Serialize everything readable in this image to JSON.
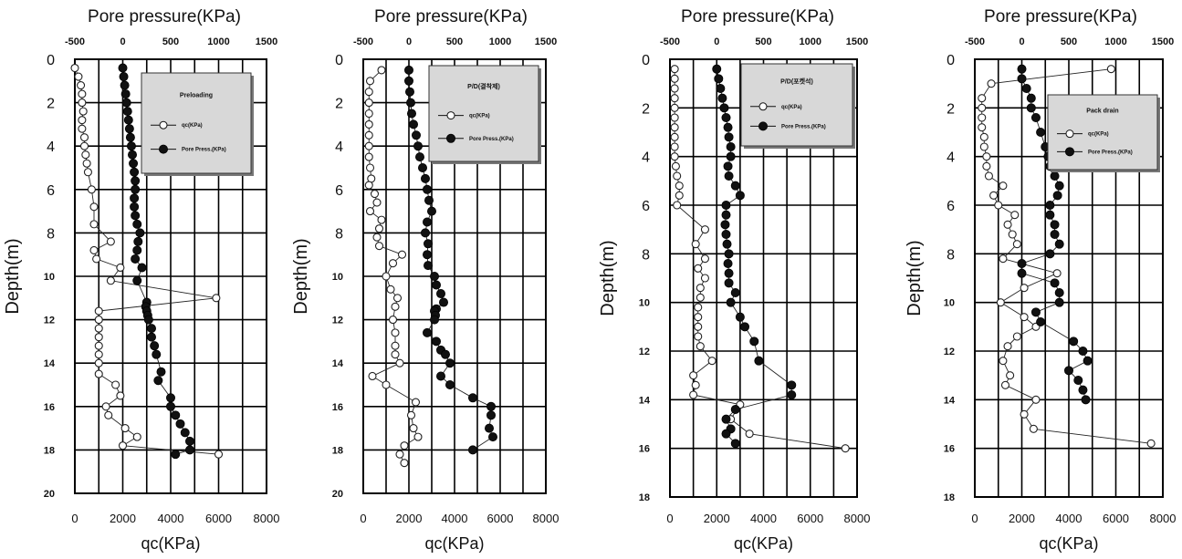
{
  "chart_data": [
    {
      "type": "line",
      "top_axis_title": "Pore pressure(KPa)",
      "ylabel": "Depth(m)",
      "xlabel": "qc(KPa)",
      "top_ticks": [
        "-500",
        "0",
        "500",
        "1000",
        "1500"
      ],
      "bottom_ticks": [
        "0",
        "2000",
        "4000",
        "6000",
        "8000"
      ],
      "depth_ticks": [
        "0",
        "2",
        "4",
        "6",
        "8",
        "10",
        "12",
        "14",
        "16",
        "18",
        "20"
      ],
      "xlim_qc": [
        0,
        8000
      ],
      "xlim_pore": [
        -500,
        1500
      ],
      "ylim_depth": [
        0,
        20
      ],
      "legend": {
        "title": "Preloading",
        "entries": [
          "qc(KPa)",
          "Pore Press.(KPa)"
        ]
      },
      "series": [
        {
          "name": "qc(KPa)",
          "marker": "open-circle",
          "x": [
            0,
            150,
            250,
            300,
            300,
            350,
            300,
            300,
            400,
            400,
            450,
            500,
            550,
            700,
            800,
            800,
            1500,
            800,
            900,
            1900,
            1500,
            5900,
            1000,
            1000,
            1000,
            1000,
            1000,
            1000,
            1000,
            1000,
            1700,
            1900,
            1300,
            1400,
            2100,
            2600,
            2000,
            6000
          ],
          "y": [
            0.4,
            0.8,
            1.2,
            1.6,
            2.0,
            2.4,
            2.8,
            3.2,
            3.6,
            4.0,
            4.4,
            4.8,
            5.2,
            6.0,
            6.8,
            7.6,
            8.4,
            8.8,
            9.2,
            9.6,
            10.2,
            11.0,
            11.6,
            12.0,
            12.4,
            12.8,
            13.2,
            13.6,
            14.0,
            14.5,
            15.0,
            15.5,
            16.0,
            16.4,
            17.0,
            17.4,
            17.8,
            18.2
          ]
        },
        {
          "name": "Pore Press.(KPa)",
          "marker": "filled-circle",
          "x": [
            0,
            10,
            20,
            30,
            40,
            50,
            60,
            70,
            80,
            90,
            100,
            110,
            120,
            130,
            130,
            120,
            120,
            130,
            150,
            180,
            160,
            150,
            130,
            200,
            150,
            250,
            240,
            250,
            260,
            270,
            300,
            300,
            330,
            350,
            400,
            370,
            500,
            500,
            550,
            600,
            650,
            700,
            700,
            550
          ],
          "y": [
            0.4,
            0.8,
            1.2,
            1.6,
            2.0,
            2.4,
            2.8,
            3.2,
            3.6,
            4.0,
            4.4,
            4.8,
            5.2,
            5.6,
            6.0,
            6.4,
            6.8,
            7.2,
            7.6,
            8.0,
            8.4,
            8.8,
            9.2,
            9.6,
            10.2,
            11.2,
            11.4,
            11.6,
            11.8,
            12.0,
            12.4,
            12.8,
            13.2,
            13.6,
            14.4,
            14.8,
            15.6,
            16.0,
            16.4,
            16.8,
            17.2,
            17.6,
            18.0,
            18.2
          ]
        }
      ]
    },
    {
      "type": "line",
      "top_axis_title": "Pore pressure(KPa)",
      "ylabel": "Depth(m)",
      "xlabel": "qc(KPa)",
      "top_ticks": [
        "-500",
        "0",
        "500",
        "1000",
        "1500"
      ],
      "bottom_ticks": [
        "0",
        "2000",
        "4000",
        "6000",
        "8000"
      ],
      "depth_ticks": [
        "0",
        "2",
        "4",
        "6",
        "8",
        "10",
        "12",
        "14",
        "16",
        "18",
        "20"
      ],
      "xlim_qc": [
        0,
        8000
      ],
      "xlim_pore": [
        -500,
        1500
      ],
      "ylim_depth": [
        0,
        20
      ],
      "legend": {
        "title": "P/D(결착제)",
        "entries": [
          "qc(KPa)",
          "Pore Press.(KPa)"
        ]
      },
      "series": [
        {
          "name": "qc(KPa)",
          "marker": "open-circle",
          "x": [
            800,
            300,
            250,
            250,
            250,
            250,
            250,
            250,
            250,
            300,
            350,
            250,
            500,
            600,
            300,
            800,
            700,
            600,
            700,
            1700,
            1300,
            1000,
            1200,
            1500,
            1400,
            1300,
            1400,
            1400,
            1400,
            1600,
            400,
            1000,
            2300,
            2100,
            2200,
            2400,
            1800,
            1600,
            1800
          ],
          "y": [
            0.5,
            1.0,
            1.5,
            2.0,
            2.5,
            3.0,
            3.5,
            4.0,
            4.5,
            5.0,
            5.5,
            5.8,
            6.2,
            6.6,
            7.0,
            7.4,
            7.8,
            8.2,
            8.6,
            9.0,
            9.4,
            10.0,
            10.6,
            11.0,
            11.4,
            12.0,
            12.6,
            13.2,
            13.6,
            14.0,
            14.6,
            15.0,
            15.8,
            16.4,
            17.0,
            17.4,
            17.8,
            18.2,
            18.6
          ]
        },
        {
          "name": "Pore Press.(KPa)",
          "marker": "filled-circle",
          "x": [
            0,
            0,
            10,
            20,
            30,
            50,
            80,
            100,
            120,
            150,
            180,
            200,
            220,
            250,
            200,
            180,
            210,
            200,
            210,
            280,
            300,
            350,
            380,
            300,
            280,
            290,
            280,
            200,
            300,
            350,
            400,
            450,
            350,
            450,
            700,
            900,
            900,
            880,
            920,
            700
          ],
          "y": [
            0.5,
            1.0,
            1.5,
            2.0,
            2.5,
            3.0,
            3.5,
            4.0,
            4.5,
            5.0,
            5.5,
            6.0,
            6.5,
            7.0,
            7.5,
            8.0,
            8.5,
            9.0,
            9.5,
            10.0,
            10.4,
            10.8,
            11.2,
            11.5,
            11.6,
            11.8,
            12.0,
            12.6,
            13.0,
            13.4,
            13.6,
            14.0,
            14.6,
            15.0,
            15.6,
            16.0,
            16.4,
            17.0,
            17.4,
            18.0
          ]
        }
      ]
    },
    {
      "type": "line",
      "top_axis_title": "Pore pressure(KPa)",
      "ylabel": "Depth(m)",
      "xlabel": "qc(KPa)",
      "top_ticks": [
        "-500",
        "0",
        "500",
        "1000",
        "1500"
      ],
      "bottom_ticks": [
        "0",
        "2000",
        "4000",
        "6000",
        "8000"
      ],
      "depth_ticks": [
        "0",
        "2",
        "4",
        "6",
        "8",
        "10",
        "12",
        "14",
        "16",
        "18"
      ],
      "xlim_qc": [
        0,
        8000
      ],
      "xlim_pore": [
        -500,
        1500
      ],
      "ylim_depth": [
        0,
        18
      ],
      "legend": {
        "title": "P/D(포켓석)",
        "entries": [
          "qc(KPa)",
          "Pore Press.(KPa)"
        ]
      },
      "series": [
        {
          "name": "qc(KPa)",
          "marker": "open-circle",
          "x": [
            200,
            200,
            200,
            200,
            200,
            200,
            200,
            200,
            200,
            200,
            250,
            300,
            400,
            400,
            300,
            1500,
            1100,
            1500,
            1200,
            1500,
            1300,
            1300,
            1200,
            1200,
            1200,
            1200,
            1300,
            1800,
            1000,
            1100,
            1000,
            3000,
            2600,
            3400,
            7500
          ],
          "y": [
            0.4,
            0.8,
            1.2,
            1.6,
            2.0,
            2.4,
            2.8,
            3.2,
            3.6,
            4.0,
            4.4,
            4.8,
            5.2,
            5.6,
            6.0,
            7.0,
            7.6,
            8.2,
            8.6,
            9.0,
            9.4,
            9.8,
            10.2,
            10.6,
            11.0,
            11.4,
            11.8,
            12.4,
            13.0,
            13.4,
            13.8,
            14.2,
            14.8,
            15.4,
            16.0
          ]
        },
        {
          "name": "Pore Press.(KPa)",
          "marker": "filled-circle",
          "x": [
            0,
            20,
            40,
            60,
            80,
            100,
            120,
            130,
            150,
            150,
            120,
            130,
            200,
            250,
            100,
            100,
            90,
            100,
            110,
            130,
            120,
            130,
            130,
            200,
            150,
            250,
            300,
            400,
            450,
            800,
            800,
            200,
            100,
            150,
            100,
            200
          ],
          "y": [
            0.4,
            0.8,
            1.2,
            1.6,
            2.0,
            2.4,
            2.8,
            3.2,
            3.6,
            4.0,
            4.4,
            4.8,
            5.2,
            5.6,
            6.0,
            6.4,
            6.8,
            7.2,
            7.6,
            8.0,
            8.4,
            8.8,
            9.2,
            9.6,
            10.0,
            10.6,
            11.0,
            11.6,
            12.4,
            13.4,
            13.8,
            14.4,
            14.8,
            15.2,
            15.4,
            15.8
          ]
        }
      ]
    },
    {
      "type": "line",
      "top_axis_title": "Pore pressure(KPa)",
      "ylabel": "Depth(m)",
      "xlabel": "qc(KPa)",
      "top_ticks": [
        "-500",
        "0",
        "500",
        "1000",
        "1500"
      ],
      "bottom_ticks": [
        "0",
        "2000",
        "4000",
        "6000",
        "8000"
      ],
      "depth_ticks": [
        "0",
        "2",
        "4",
        "6",
        "8",
        "10",
        "12",
        "14",
        "16",
        "18"
      ],
      "xlim_qc": [
        0,
        8000
      ],
      "xlim_pore": [
        -500,
        1500
      ],
      "ylim_depth": [
        0,
        18
      ],
      "legend": {
        "title": "Pack drain",
        "entries": [
          "qc(KPa)",
          "Pore Press.(KPa)"
        ]
      },
      "series": [
        {
          "name": "qc(KPa)",
          "marker": "open-circle",
          "x": [
            5800,
            700,
            300,
            300,
            300,
            300,
            400,
            400,
            500,
            500,
            600,
            1200,
            800,
            1000,
            1700,
            1400,
            1600,
            1800,
            1200,
            3500,
            2100,
            1100,
            2100,
            2600,
            1800,
            1400,
            1200,
            1500,
            1300,
            2600,
            2100,
            2500,
            7500
          ],
          "y": [
            0.4,
            1.0,
            1.6,
            2.0,
            2.4,
            2.8,
            3.2,
            3.6,
            4.0,
            4.4,
            4.8,
            5.2,
            5.6,
            6.0,
            6.4,
            6.8,
            7.2,
            7.6,
            8.2,
            8.8,
            9.4,
            10.0,
            10.6,
            11.0,
            11.4,
            11.8,
            12.4,
            13.0,
            13.4,
            14.0,
            14.6,
            15.2,
            15.8
          ]
        },
        {
          "name": "Pore Press.(KPa)",
          "marker": "filled-circle",
          "x": [
            0,
            0,
            50,
            100,
            100,
            150,
            200,
            250,
            280,
            300,
            350,
            400,
            380,
            300,
            300,
            350,
            350,
            400,
            300,
            0,
            0,
            350,
            400,
            400,
            150,
            200,
            550,
            650,
            700,
            500,
            600,
            650,
            680
          ],
          "y": [
            0.4,
            0.8,
            1.2,
            1.6,
            2.0,
            2.4,
            3.0,
            3.6,
            4.0,
            4.4,
            4.8,
            5.2,
            5.6,
            6.0,
            6.4,
            6.8,
            7.2,
            7.6,
            8.0,
            8.4,
            8.8,
            9.2,
            9.6,
            10.0,
            10.4,
            10.8,
            11.6,
            12.0,
            12.4,
            12.8,
            13.2,
            13.6,
            14.0
          ]
        }
      ]
    }
  ]
}
